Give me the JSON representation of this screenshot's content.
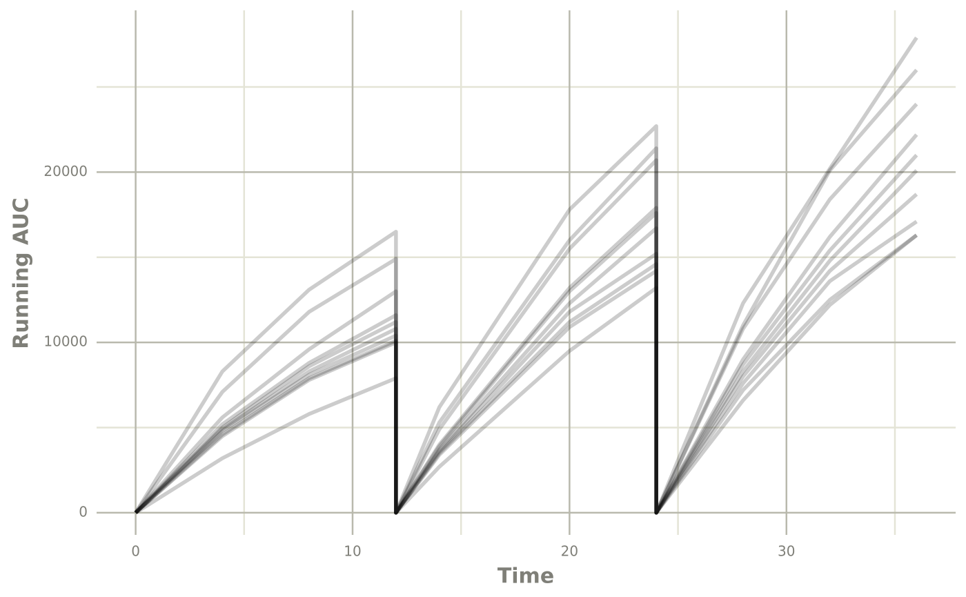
{
  "chart_data": {
    "type": "line",
    "x_label": "Time",
    "y_label": "Running AUC",
    "x": [
      0,
      4,
      8,
      12,
      12,
      14,
      20,
      24,
      24,
      28,
      32,
      36
    ],
    "color": "#000000",
    "alpha": 0.2,
    "series": [
      {
        "values": [
          0,
          8300,
          13100,
          16500,
          0,
          6200,
          17800,
          22700,
          0,
          12300,
          20200,
          27900
        ]
      },
      {
        "values": [
          0,
          7100,
          11800,
          14900,
          0,
          5300,
          16000,
          21400,
          0,
          11000,
          20100,
          26000
        ]
      },
      {
        "values": [
          0,
          5600,
          9600,
          13000,
          0,
          4900,
          15500,
          20700,
          0,
          10800,
          18400,
          24000
        ]
      },
      {
        "values": [
          0,
          5200,
          8800,
          11600,
          0,
          4000,
          13200,
          17900,
          0,
          9000,
          16200,
          22200
        ]
      },
      {
        "values": [
          0,
          5000,
          8600,
          11200,
          0,
          3900,
          13000,
          17600,
          0,
          8700,
          15400,
          21000
        ]
      },
      {
        "values": [
          0,
          4900,
          8300,
          10800,
          0,
          3700,
          12300,
          16700,
          0,
          8300,
          14800,
          20100
        ]
      },
      {
        "values": [
          0,
          4800,
          8100,
          10400,
          0,
          3600,
          11800,
          15200,
          0,
          8000,
          14200,
          18700
        ]
      },
      {
        "values": [
          0,
          4600,
          7900,
          10100,
          0,
          3500,
          11200,
          14600,
          0,
          7600,
          13600,
          17100
        ]
      },
      {
        "values": [
          0,
          4500,
          7800,
          10000,
          0,
          3400,
          10900,
          14200,
          0,
          7200,
          12500,
          16300
        ]
      },
      {
        "values": [
          0,
          3200,
          5800,
          7900,
          0,
          2700,
          9500,
          13200,
          0,
          6600,
          12200,
          16300
        ]
      }
    ],
    "xlim": [
      -1.8,
      37.8
    ],
    "ylim": [
      -1300,
      29500
    ],
    "xticks": [
      0,
      10,
      20,
      30
    ],
    "yticks": [
      0,
      10000,
      20000
    ],
    "minor_xticks": [
      5,
      15,
      25,
      35
    ],
    "minor_yticks": [
      5000,
      15000,
      25000
    ],
    "grid": true
  }
}
